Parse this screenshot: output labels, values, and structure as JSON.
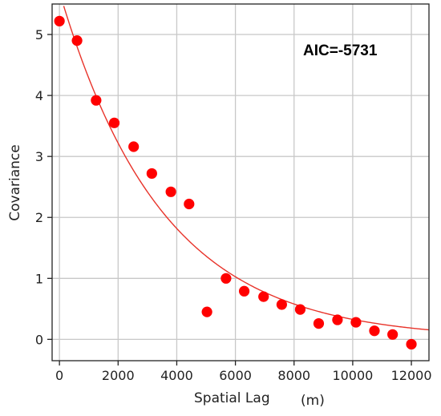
{
  "chart_data": {
    "type": "scatter",
    "xlabel": "Spatial Lag",
    "xlabel_unit": "(m)",
    "ylabel": "Covariance",
    "annotation": "AIC=-5731",
    "xlim": [
      -250,
      12600
    ],
    "ylim": [
      -0.35,
      5.5
    ],
    "xticks": [
      0,
      2000,
      4000,
      6000,
      8000,
      10000,
      12000
    ],
    "yticks": [
      0,
      1,
      2,
      3,
      4,
      5
    ],
    "grid": true,
    "point_color": "#ff0000",
    "curve_color": "#e8332a",
    "points": [
      {
        "x": 0,
        "y": 5.22
      },
      {
        "x": 600,
        "y": 4.9
      },
      {
        "x": 1250,
        "y": 3.92
      },
      {
        "x": 1870,
        "y": 3.55
      },
      {
        "x": 2530,
        "y": 3.16
      },
      {
        "x": 3150,
        "y": 2.72
      },
      {
        "x": 3800,
        "y": 2.42
      },
      {
        "x": 4420,
        "y": 2.22
      },
      {
        "x": 5030,
        "y": 0.45
      },
      {
        "x": 5680,
        "y": 1.0
      },
      {
        "x": 6300,
        "y": 0.79
      },
      {
        "x": 6960,
        "y": 0.7
      },
      {
        "x": 7580,
        "y": 0.57
      },
      {
        "x": 8210,
        "y": 0.49
      },
      {
        "x": 8840,
        "y": 0.26
      },
      {
        "x": 9480,
        "y": 0.32
      },
      {
        "x": 10110,
        "y": 0.28
      },
      {
        "x": 10740,
        "y": 0.14
      },
      {
        "x": 11360,
        "y": 0.08
      },
      {
        "x": 12000,
        "y": -0.08
      }
    ],
    "fit_curve": {
      "model": "exponential",
      "sill": 5.7,
      "range": 3500,
      "x_start": 0,
      "x_end": 12600
    }
  }
}
